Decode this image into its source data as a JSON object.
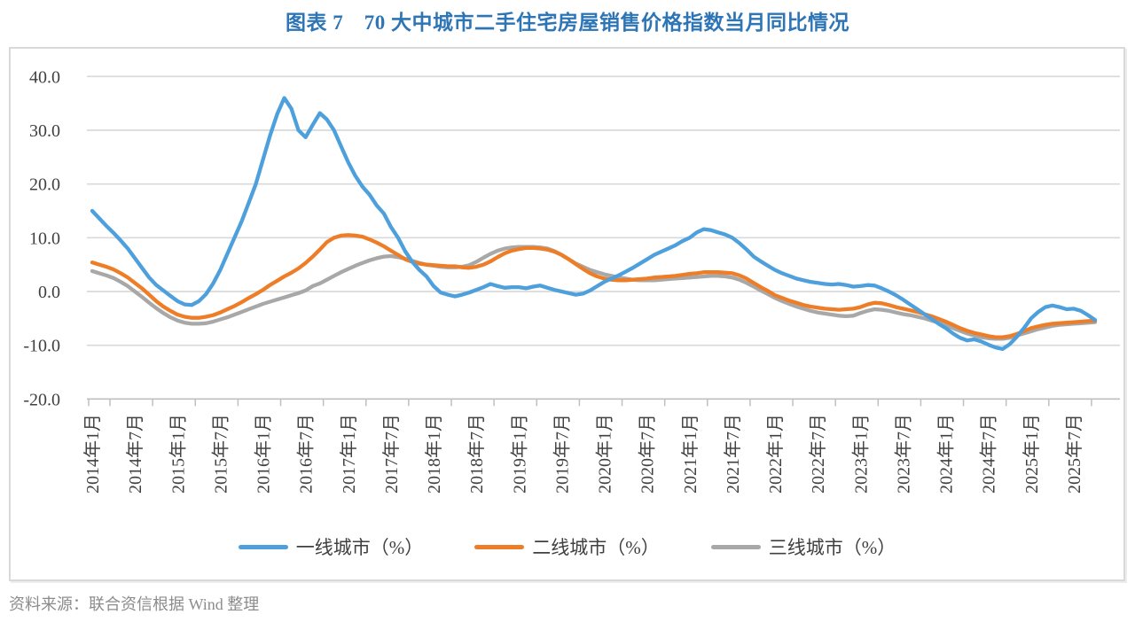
{
  "title": "图表 7　70 大中城市二手住宅房屋销售价格指数当月同比情况",
  "source_note": "资料来源：联合资信根据 Wind 整理",
  "ui_colors": {
    "title_text": "#2E75B6",
    "axis_text": "#404040",
    "gridline": "#D9D9D9",
    "axis_line": "#BFBFBF",
    "box_border": "#D9D9D9",
    "source_text": "#8C8C8C"
  },
  "chart_data": {
    "type": "line",
    "title": "图表 7　70 大中城市二手住宅房屋销售价格指数当月同比情况",
    "x_start": "2014年1月",
    "x_end": "2025年10月",
    "x_freq": "monthly",
    "x_tick_labels": [
      "2014年1月",
      "2014年7月",
      "2015年1月",
      "2015年7月",
      "2016年1月",
      "2016年7月",
      "2017年1月",
      "2017年7月",
      "2018年1月",
      "2018年7月",
      "2019年1月",
      "2019年7月",
      "2020年1月",
      "2020年7月",
      "2021年1月",
      "2021年7月",
      "2022年1月",
      "2022年7月",
      "2023年1月",
      "2023年7月",
      "2024年1月",
      "2024年7月",
      "2025年1月",
      "2025年7月"
    ],
    "y_tick_labels": [
      "40.0",
      "30.0",
      "20.0",
      "10.0",
      "0.0",
      "-10.0",
      "-20.0"
    ],
    "y_tick_values": [
      40,
      30,
      20,
      10,
      0,
      -10,
      -20
    ],
    "ylim": [
      -20,
      40
    ],
    "ylabel": "",
    "xlabel": "",
    "grid": "horizontal",
    "legend_position": "bottom",
    "series": [
      {
        "name": "一线城市（%）",
        "key": "first-tier",
        "color": "#4DA0DC",
        "values": [
          15.0,
          13.6,
          12.2,
          10.9,
          9.5,
          8.0,
          6.2,
          4.4,
          2.6,
          1.2,
          0.2,
          -0.8,
          -1.8,
          -2.4,
          -2.5,
          -1.8,
          -0.5,
          1.5,
          4.0,
          7.0,
          10.0,
          13.0,
          16.5,
          20.0,
          24.5,
          29.0,
          33.0,
          36.0,
          34.0,
          30.0,
          28.7,
          31.0,
          33.2,
          32.0,
          30.0,
          27.0,
          24.0,
          21.5,
          19.5,
          18.0,
          16.0,
          14.5,
          12.0,
          10.0,
          7.5,
          5.5,
          4.0,
          2.8,
          1.0,
          -0.2,
          -0.6,
          -0.9,
          -0.6,
          -0.2,
          0.3,
          0.8,
          1.4,
          1.0,
          0.7,
          0.8,
          0.8,
          0.6,
          0.9,
          1.1,
          0.7,
          0.3,
          0.0,
          -0.3,
          -0.6,
          -0.4,
          0.2,
          1.0,
          1.8,
          2.4,
          3.0,
          3.7,
          4.4,
          5.2,
          6.0,
          6.8,
          7.4,
          8.0,
          8.6,
          9.4,
          10.0,
          11.0,
          11.6,
          11.4,
          11.0,
          10.6,
          10.0,
          9.0,
          7.8,
          6.5,
          5.6,
          4.8,
          4.0,
          3.4,
          2.9,
          2.4,
          2.1,
          1.8,
          1.6,
          1.4,
          1.3,
          1.4,
          1.2,
          0.9,
          1.0,
          1.2,
          1.1,
          0.6,
          0.0,
          -0.7,
          -1.5,
          -2.4,
          -3.3,
          -4.2,
          -5.1,
          -6.0,
          -6.8,
          -7.8,
          -8.6,
          -9.1,
          -8.9,
          -9.3,
          -9.9,
          -10.4,
          -10.7,
          -9.8,
          -8.4,
          -6.8,
          -5.0,
          -3.8,
          -2.9,
          -2.6,
          -2.9,
          -3.3,
          -3.2,
          -3.6,
          -4.4,
          -5.3
        ]
      },
      {
        "name": "二线城市（%）",
        "key": "second-tier",
        "color": "#EE7D28",
        "values": [
          5.4,
          5.0,
          4.6,
          4.1,
          3.4,
          2.6,
          1.6,
          0.6,
          -0.6,
          -1.8,
          -2.8,
          -3.6,
          -4.3,
          -4.7,
          -4.9,
          -4.9,
          -4.7,
          -4.4,
          -3.9,
          -3.3,
          -2.7,
          -2.0,
          -1.2,
          -0.5,
          0.3,
          1.2,
          2.0,
          2.8,
          3.5,
          4.3,
          5.3,
          6.5,
          7.8,
          9.2,
          10.0,
          10.4,
          10.5,
          10.4,
          10.2,
          9.7,
          9.1,
          8.4,
          7.6,
          6.8,
          6.0,
          5.5,
          5.2,
          5.0,
          4.9,
          4.8,
          4.7,
          4.7,
          4.5,
          4.4,
          4.6,
          5.0,
          5.6,
          6.4,
          7.1,
          7.6,
          7.9,
          8.1,
          8.1,
          8.0,
          7.8,
          7.4,
          6.8,
          6.0,
          5.1,
          4.2,
          3.4,
          2.8,
          2.4,
          2.2,
          2.1,
          2.1,
          2.2,
          2.3,
          2.4,
          2.6,
          2.7,
          2.8,
          2.9,
          3.1,
          3.3,
          3.4,
          3.6,
          3.6,
          3.6,
          3.5,
          3.4,
          3.0,
          2.4,
          1.6,
          0.8,
          0.1,
          -0.7,
          -1.2,
          -1.7,
          -2.1,
          -2.5,
          -2.8,
          -3.0,
          -3.2,
          -3.3,
          -3.4,
          -3.3,
          -3.2,
          -2.9,
          -2.4,
          -2.1,
          -2.2,
          -2.5,
          -2.9,
          -3.2,
          -3.5,
          -3.8,
          -4.2,
          -4.6,
          -5.1,
          -5.6,
          -6.2,
          -6.8,
          -7.3,
          -7.7,
          -8.0,
          -8.3,
          -8.5,
          -8.5,
          -8.3,
          -7.9,
          -7.4,
          -6.8,
          -6.5,
          -6.2,
          -6.0,
          -5.9,
          -5.8,
          -5.7,
          -5.6,
          -5.5,
          -5.4
        ]
      },
      {
        "name": "三线城市（%）",
        "key": "third-tier",
        "color": "#A8A8A8",
        "values": [
          3.8,
          3.4,
          3.0,
          2.5,
          1.8,
          1.0,
          0.0,
          -1.0,
          -2.1,
          -3.1,
          -4.0,
          -4.8,
          -5.4,
          -5.8,
          -6.0,
          -6.0,
          -5.9,
          -5.6,
          -5.2,
          -4.8,
          -4.3,
          -3.8,
          -3.3,
          -2.8,
          -2.3,
          -1.9,
          -1.5,
          -1.1,
          -0.7,
          -0.3,
          0.2,
          1.0,
          1.5,
          2.2,
          2.9,
          3.6,
          4.2,
          4.8,
          5.3,
          5.8,
          6.2,
          6.5,
          6.6,
          6.4,
          6.1,
          5.7,
          5.3,
          5.0,
          4.8,
          4.6,
          4.5,
          4.5,
          4.6,
          4.9,
          5.5,
          6.3,
          7.0,
          7.6,
          8.0,
          8.2,
          8.3,
          8.3,
          8.3,
          8.2,
          8.0,
          7.5,
          6.8,
          6.0,
          5.2,
          4.6,
          4.0,
          3.6,
          3.2,
          2.9,
          2.6,
          2.4,
          2.2,
          2.1,
          2.1,
          2.1,
          2.2,
          2.3,
          2.4,
          2.5,
          2.6,
          2.7,
          2.8,
          2.9,
          2.9,
          2.8,
          2.6,
          2.2,
          1.6,
          0.9,
          0.2,
          -0.5,
          -1.2,
          -1.8,
          -2.3,
          -2.8,
          -3.2,
          -3.6,
          -3.9,
          -4.1,
          -4.3,
          -4.5,
          -4.6,
          -4.5,
          -4.0,
          -3.6,
          -3.3,
          -3.4,
          -3.6,
          -3.9,
          -4.2,
          -4.4,
          -4.7,
          -5.0,
          -5.4,
          -5.8,
          -6.2,
          -6.8,
          -7.3,
          -7.8,
          -8.2,
          -8.5,
          -8.7,
          -8.8,
          -8.8,
          -8.6,
          -8.2,
          -7.8,
          -7.4,
          -7.0,
          -6.7,
          -6.4,
          -6.2,
          -6.1,
          -6.0,
          -5.9,
          -5.8,
          -5.7
        ]
      }
    ]
  }
}
